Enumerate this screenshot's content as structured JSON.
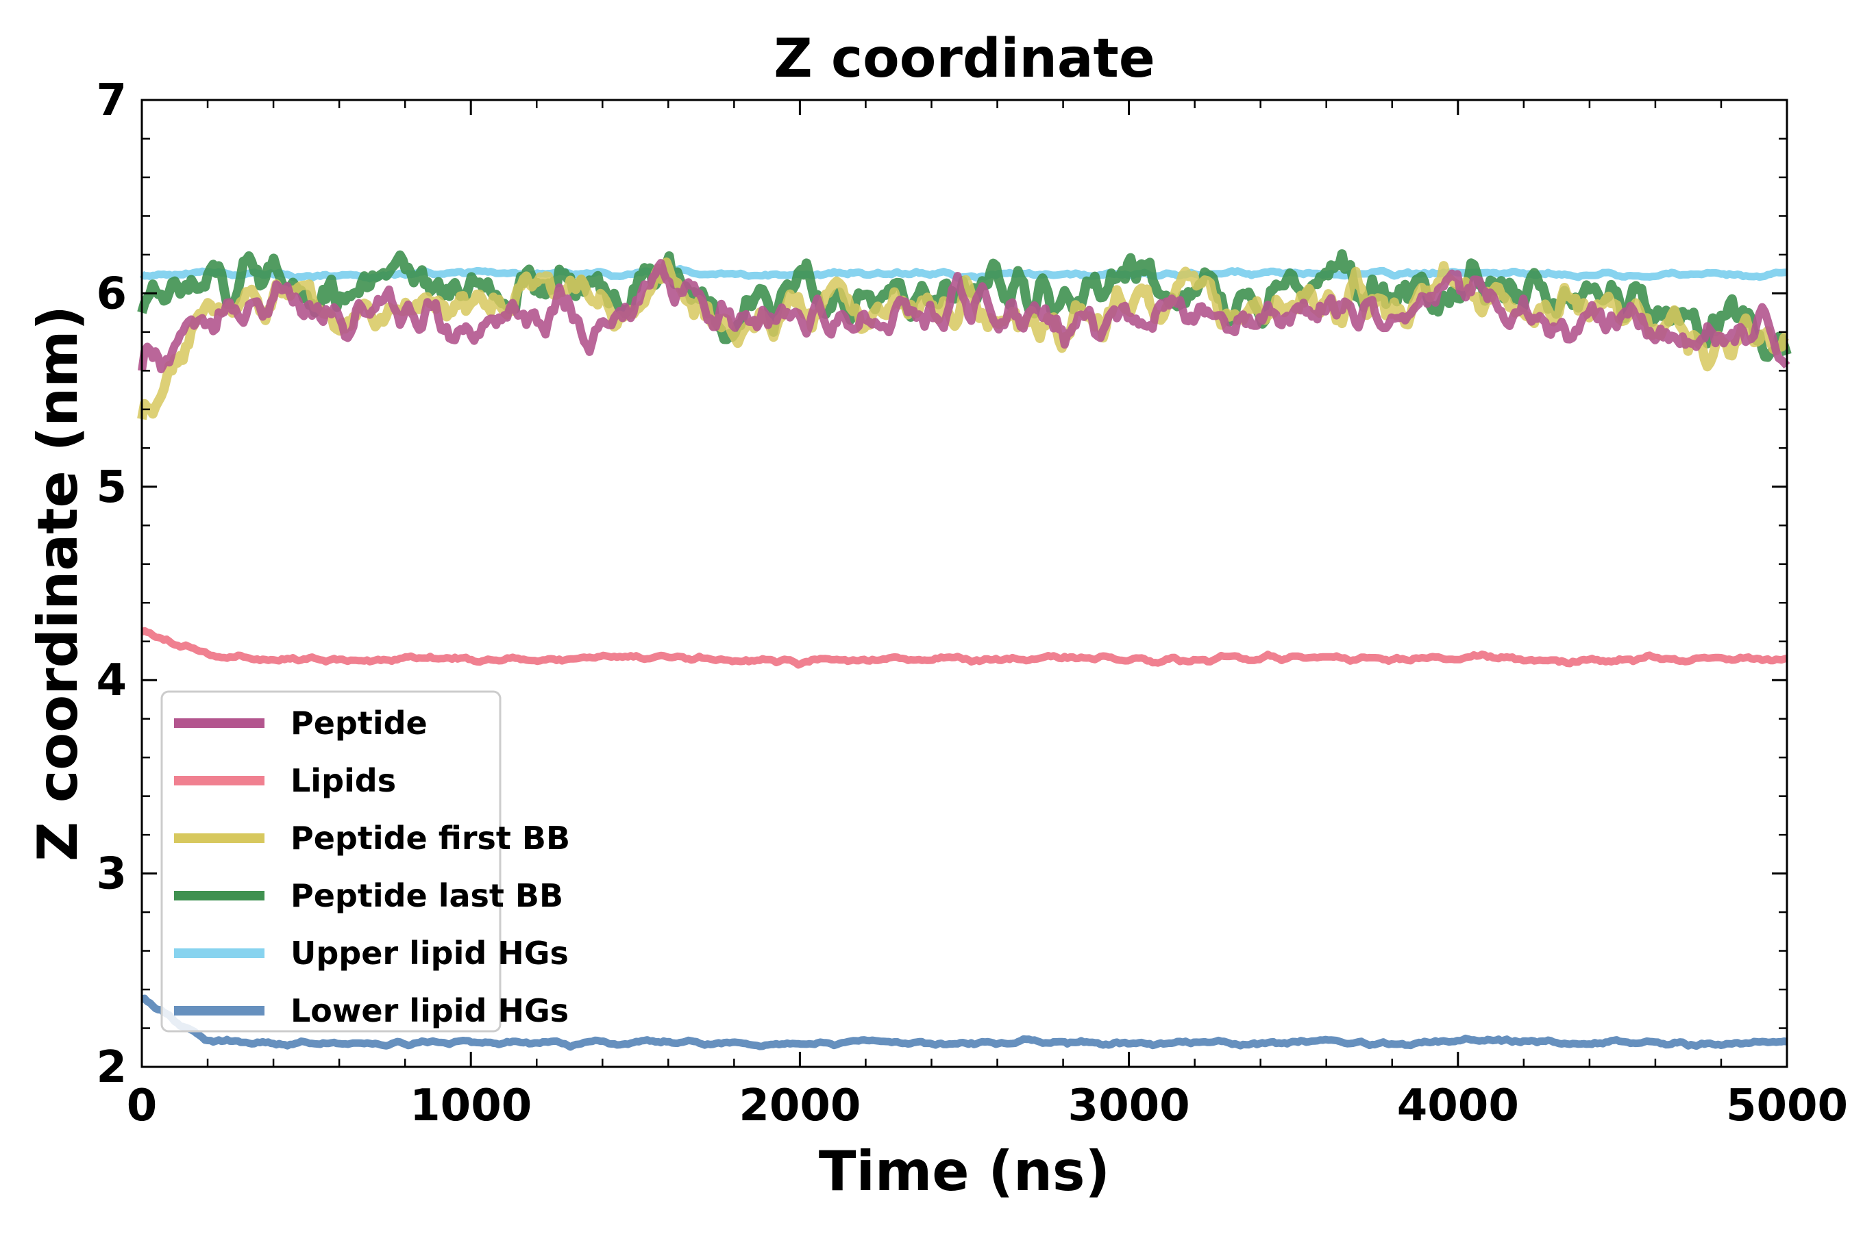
{
  "chart_data": {
    "type": "line",
    "title": "Z coordinate",
    "xlabel": "Time (ns)",
    "ylabel": "Z coordinate (nm)",
    "xlim": [
      0,
      5000
    ],
    "ylim": [
      2,
      7
    ],
    "xticks": [
      0,
      1000,
      2000,
      3000,
      4000,
      5000
    ],
    "yticks": [
      2,
      3,
      4,
      5,
      6,
      7
    ],
    "grid": false,
    "legend_position": "lower-left",
    "series": [
      {
        "name": "Peptide",
        "color": "#b3558e",
        "x": [
          0,
          200,
          400,
          600,
          800,
          1000,
          1200,
          1400,
          1600,
          1800,
          2000,
          2200,
          2400,
          2600,
          2800,
          3000,
          3200,
          3400,
          3600,
          3800,
          4000,
          4200,
          4400,
          4600,
          4800,
          5000
        ],
        "values": [
          5.6,
          5.85,
          6.05,
          5.8,
          5.95,
          5.85,
          5.95,
          5.85,
          6.0,
          5.8,
          5.9,
          5.85,
          5.9,
          5.95,
          5.8,
          5.9,
          5.95,
          5.8,
          5.95,
          5.85,
          6.0,
          5.85,
          5.9,
          5.8,
          5.75,
          5.75
        ]
      },
      {
        "name": "Lipids",
        "color": "#f08090",
        "x": [
          0,
          200,
          400,
          600,
          800,
          1000,
          1200,
          1400,
          1600,
          1800,
          2000,
          2200,
          2400,
          2600,
          2800,
          3000,
          3200,
          3400,
          3600,
          3800,
          4000,
          4200,
          4400,
          4600,
          4800,
          5000
        ],
        "values": [
          4.25,
          4.12,
          4.11,
          4.1,
          4.11,
          4.12,
          4.1,
          4.11,
          4.12,
          4.11,
          4.1,
          4.11,
          4.1,
          4.11,
          4.12,
          4.11,
          4.1,
          4.11,
          4.12,
          4.11,
          4.13,
          4.11,
          4.1,
          4.11,
          4.11,
          4.1
        ]
      },
      {
        "name": "Peptide first BB",
        "color": "#d7c85e",
        "x": [
          0,
          200,
          400,
          600,
          800,
          1000,
          1200,
          1400,
          1600,
          1800,
          2000,
          2200,
          2400,
          2600,
          2800,
          3000,
          3200,
          3400,
          3600,
          3800,
          4000,
          4200,
          4400,
          4600,
          4800,
          5000
        ],
        "values": [
          5.35,
          5.9,
          6.0,
          5.85,
          5.95,
          5.9,
          6.0,
          5.9,
          6.05,
          5.85,
          5.95,
          5.9,
          5.95,
          5.9,
          5.85,
          5.95,
          6.0,
          5.85,
          6.0,
          5.9,
          6.05,
          5.9,
          5.95,
          5.85,
          5.7,
          5.75
        ]
      },
      {
        "name": "Peptide last BB",
        "color": "#3f9150",
        "x": [
          0,
          200,
          400,
          600,
          800,
          1000,
          1200,
          1400,
          1600,
          1800,
          2000,
          2200,
          2400,
          2600,
          2800,
          3000,
          3200,
          3400,
          3600,
          3800,
          4000,
          4200,
          4400,
          4600,
          4800,
          5000
        ],
        "values": [
          5.9,
          6.0,
          6.15,
          5.95,
          6.1,
          5.95,
          6.1,
          6.0,
          6.1,
          5.9,
          6.05,
          5.95,
          6.0,
          6.05,
          5.9,
          6.05,
          6.05,
          5.95,
          6.1,
          5.95,
          6.1,
          5.95,
          6.05,
          5.9,
          5.8,
          5.75
        ]
      },
      {
        "name": "Upper lipid HGs",
        "color": "#87d3ef",
        "x": [
          0,
          200,
          400,
          600,
          800,
          1000,
          1200,
          1400,
          1600,
          1800,
          2000,
          2200,
          2400,
          2600,
          2800,
          3000,
          3200,
          3400,
          3600,
          3800,
          4000,
          4200,
          4400,
          4600,
          4800,
          5000
        ],
        "values": [
          6.1,
          6.1,
          6.1,
          6.09,
          6.1,
          6.11,
          6.1,
          6.1,
          6.11,
          6.1,
          6.1,
          6.1,
          6.1,
          6.09,
          6.1,
          6.1,
          6.1,
          6.11,
          6.1,
          6.1,
          6.11,
          6.1,
          6.1,
          6.1,
          6.1,
          6.09
        ]
      },
      {
        "name": "Lower lipid HGs",
        "color": "#6690be",
        "x": [
          0,
          200,
          400,
          600,
          800,
          1000,
          1200,
          1400,
          1600,
          1800,
          2000,
          2200,
          2400,
          2600,
          2800,
          3000,
          3200,
          3400,
          3600,
          3800,
          4000,
          4200,
          4400,
          4600,
          4800,
          5000
        ],
        "values": [
          2.35,
          2.13,
          2.12,
          2.12,
          2.12,
          2.13,
          2.12,
          2.12,
          2.13,
          2.12,
          2.12,
          2.13,
          2.12,
          2.12,
          2.13,
          2.12,
          2.13,
          2.12,
          2.13,
          2.12,
          2.14,
          2.13,
          2.12,
          2.12,
          2.12,
          2.12
        ]
      }
    ]
  }
}
